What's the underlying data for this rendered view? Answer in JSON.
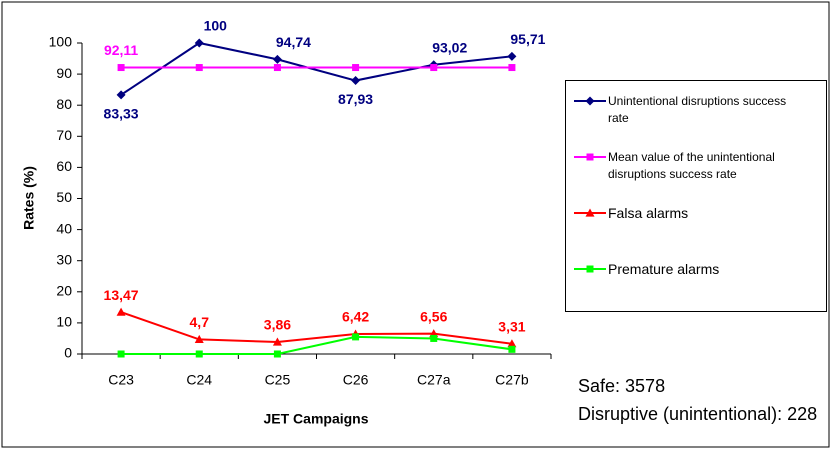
{
  "chart_data": {
    "type": "line",
    "x_label": "JET Campaigns",
    "y_label": "Rates (%)",
    "categories": [
      "C23",
      "C24",
      "C25",
      "C26",
      "C27a",
      "C27b"
    ],
    "series": [
      {
        "name": "Unintentional disruptions success rate",
        "color": "#000080",
        "marker": "diamond",
        "values": [
          83.33,
          100,
          94.74,
          87.93,
          93.02,
          95.71
        ],
        "value_labels": [
          "83,33",
          "100",
          "94,74",
          "87,93",
          "93,02",
          "95,71"
        ]
      },
      {
        "name": "Mean value of the unintentional disruptions success rate",
        "color": "#ff00ff",
        "marker": "square",
        "values": [
          92.11,
          92.11,
          92.11,
          92.11,
          92.11,
          92.11
        ],
        "value_labels": [
          "92,11",
          null,
          null,
          null,
          null,
          null
        ]
      },
      {
        "name": "Falsa alarms",
        "color": "#ff0000",
        "marker": "triangle",
        "values": [
          13.47,
          4.7,
          3.86,
          6.42,
          6.56,
          3.31
        ],
        "value_labels": [
          "13,47",
          "4,7",
          "3,86",
          "6,42",
          "6,56",
          "3,31"
        ]
      },
      {
        "name": "Premature alarms",
        "color": "#00ff00",
        "marker": "square",
        "values": [
          0,
          0,
          0,
          5.5,
          5,
          1.5
        ]
      }
    ],
    "ylim": [
      0,
      100
    ],
    "yticks": [
      0,
      10,
      20,
      30,
      40,
      50,
      60,
      70,
      80,
      90,
      100
    ],
    "grid": false,
    "annotations": [
      "Safe: 3578",
      "Disruptive (unintentional): 228"
    ]
  }
}
